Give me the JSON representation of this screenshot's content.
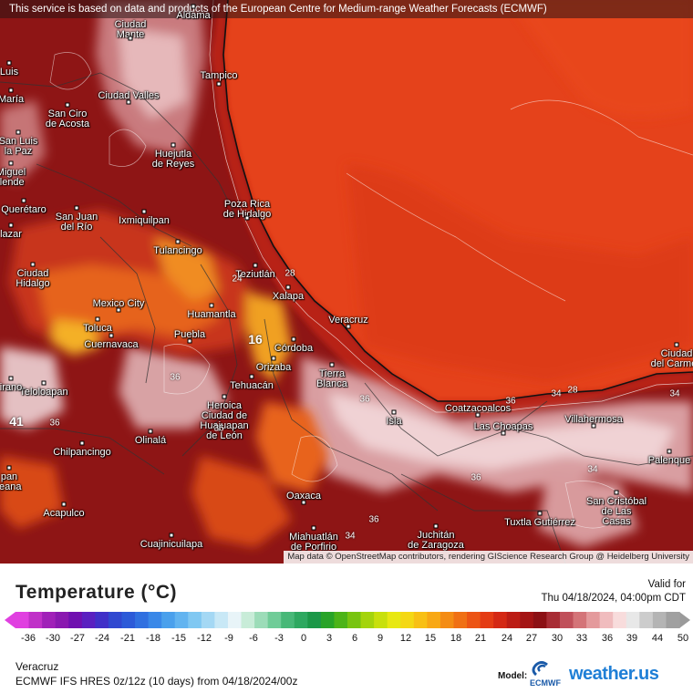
{
  "header": {
    "notice": "This service is based on data and products of the European Centre for Medium-range Weather Forecasts (ECMWF)"
  },
  "map": {
    "attribution": "Map data © OpenStreetMap contributors, rendering GIScience Research Group @ Heidelberg University",
    "cities": [
      {
        "name": "Ciudad\nMante"
      },
      {
        "name": "Aldama"
      },
      {
        "name": "Tampico"
      },
      {
        "name": "Ciudad Valles"
      },
      {
        "name": "San Ciro\nde Acosta"
      },
      {
        "name": "Huejutla\nde Reyes"
      },
      {
        "name": "Poza Rica\nde Hidalgo"
      },
      {
        "name": "San Juan\ndel Río"
      },
      {
        "name": "Ixmiquilpan"
      },
      {
        "name": "Tulancingo"
      },
      {
        "name": "Teziutlán"
      },
      {
        "name": "Xalapa"
      },
      {
        "name": "Ciudad\nHidalgo"
      },
      {
        "name": "Mexico City"
      },
      {
        "name": "Huamantla"
      },
      {
        "name": "Toluca"
      },
      {
        "name": "Puebla"
      },
      {
        "name": "Cuernavaca"
      },
      {
        "name": "Veracruz"
      },
      {
        "name": "Córdoba"
      },
      {
        "name": "Orizaba"
      },
      {
        "name": "Tierra\nBlanca"
      },
      {
        "name": "Tehuacán"
      },
      {
        "name": "Heroica\nCiudad de\nHuajuapan\nde León"
      },
      {
        "name": "Teloloapan"
      },
      {
        "name": "Olinalá"
      },
      {
        "name": "Chilpancingo"
      },
      {
        "name": "Coatzacoalcos"
      },
      {
        "name": "Las Choapas"
      },
      {
        "name": "Villahermosa"
      },
      {
        "name": "Isla"
      },
      {
        "name": "Palenque"
      },
      {
        "name": "Oaxaca"
      },
      {
        "name": "Acapulco"
      },
      {
        "name": "Cuajinicuilapa"
      },
      {
        "name": "Miahuatlán\nde Porfirio"
      },
      {
        "name": "Juchitán\nde Zaragoza"
      },
      {
        "name": "Tuxtla Gutiérrez"
      },
      {
        "name": "San Cristóbal\nde Las\nCasas"
      },
      {
        "name": "Ciudad\ndel Carmen"
      },
      {
        "name": "Luis"
      },
      {
        "name": "María"
      },
      {
        "name": "San Luis\nla Paz"
      },
      {
        "name": "Miguel\nllende"
      },
      {
        "name": "Querétaro"
      },
      {
        "name": "lazar"
      },
      {
        "name": "irano"
      },
      {
        "name": "pan\nleana"
      }
    ],
    "isotherm_labels": [
      "36",
      "36",
      "36",
      "36",
      "34",
      "24",
      "28",
      "16",
      "41",
      "36",
      "36",
      "34",
      "34",
      "34",
      "28",
      "36"
    ]
  },
  "legend": {
    "title": "Temperature (°C)",
    "valid_label": "Valid for",
    "valid_time": "Thu 04/18/2024, 04:00pm CDT",
    "ticks": [
      "-36",
      "-30",
      "-27",
      "-24",
      "-21",
      "-18",
      "-15",
      "-12",
      "-9",
      "-6",
      "-3",
      "0",
      "3",
      "6",
      "9",
      "12",
      "15",
      "18",
      "21",
      "24",
      "27",
      "30",
      "33",
      "36",
      "39",
      "44",
      "50"
    ],
    "location": "Veracruz",
    "model_run": "ECMWF IFS HRES 0z/12z (10 days) from  04/18/2024/00z",
    "model_label": "Model:",
    "model_logo": "ECMWF",
    "brand": "weather.us",
    "colors": {
      "sea": "#e8401a",
      "land_hot": "#8c1414",
      "land_warm": "#c43218",
      "land_pink": "#d89a9c",
      "land_pale": "#f0d4d6",
      "highland_orange": "#f07a18"
    }
  }
}
